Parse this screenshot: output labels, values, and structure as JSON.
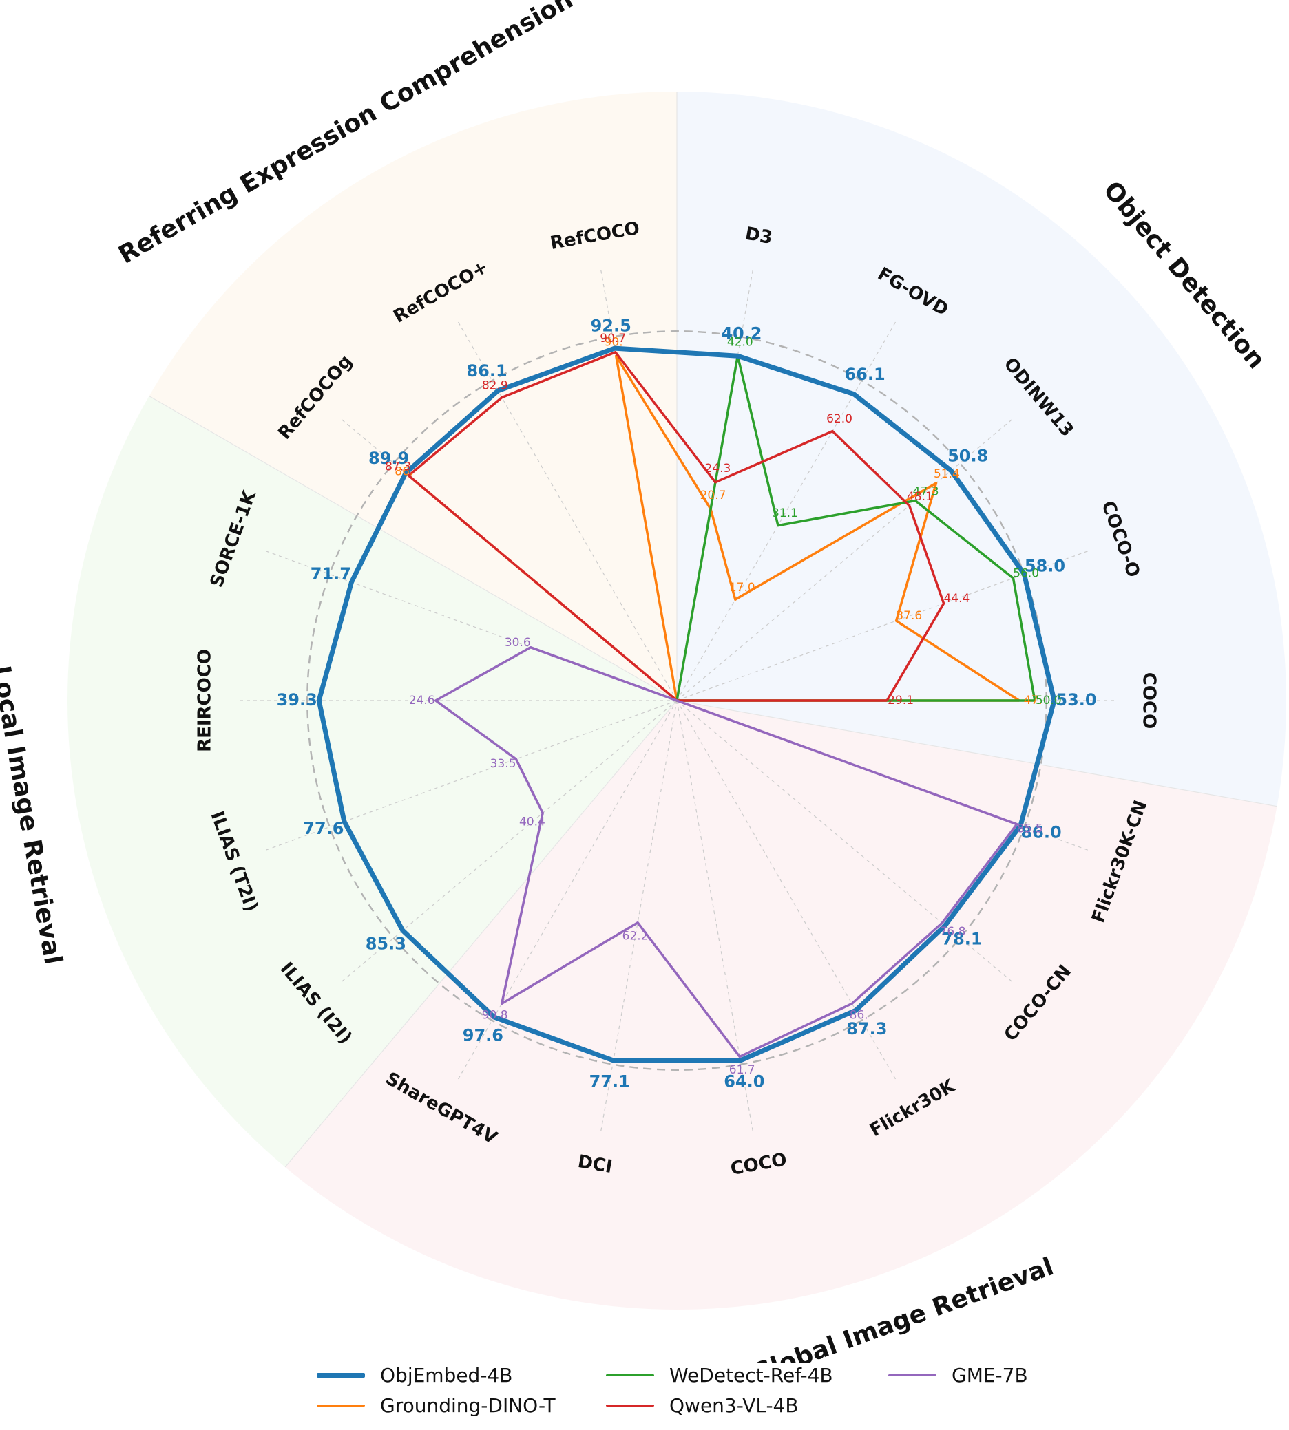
{
  "chart_data": {
    "type": "radar",
    "r_max": 100,
    "reference_ring": 95,
    "grid": true,
    "legend_position": "bottom",
    "groups": [
      {
        "name": "Object Detection",
        "color": "#e8f0fb"
      },
      {
        "name": "Referring Expression Comprehension",
        "color": "#fdf3e6"
      },
      {
        "name": "Local Image Retrieval",
        "color": "#e9f8e6"
      },
      {
        "name": "Global Image Retrieval",
        "color": "#fce8ea"
      }
    ],
    "axes": [
      {
        "label": "COCO",
        "group": 0
      },
      {
        "label": "COCO-O",
        "group": 0
      },
      {
        "label": "ODINW13",
        "group": 0
      },
      {
        "label": "FG-OVD",
        "group": 0
      },
      {
        "label": "D3",
        "group": 0
      },
      {
        "label": "RefCOCO",
        "group": 1
      },
      {
        "label": "RefCOCO+",
        "group": 1
      },
      {
        "label": "RefCOCOg",
        "group": 1
      },
      {
        "label": "SORCE-1K",
        "group": 2
      },
      {
        "label": "REIRCOCO",
        "group": 2
      },
      {
        "label": "ILIAS (T2I)",
        "group": 2
      },
      {
        "label": "ILIAS (I2I)",
        "group": 2
      },
      {
        "label": "ShareGPT4V",
        "group": 3
      },
      {
        "label": "DCI",
        "group": 3
      },
      {
        "label": "COCO",
        "group": 3
      },
      {
        "label": "Flickr30K",
        "group": 3
      },
      {
        "label": "COCO-CN",
        "group": 3
      },
      {
        "label": "Flickr30K-CN",
        "group": 3
      }
    ],
    "series": [
      {
        "name": "ObjEmbed-4B",
        "color": "#1f77b4",
        "stroke_width": 7,
        "primary": true,
        "r": [
          97,
          95,
          92,
          91,
          90,
          92,
          92,
          91,
          89,
          92,
          91,
          92,
          94,
          94,
          94,
          92,
          90,
          94
        ],
        "values": [
          "53.0",
          "58.0",
          "50.8",
          "66.1",
          "40.2",
          "92.5",
          "86.1",
          "89.9",
          "71.7",
          "39.3",
          "77.6",
          "85.3",
          "97.6",
          "77.1",
          "64.0",
          "87.3",
          "78.1",
          "86.0"
        ]
      },
      {
        "name": "Grounding-DINO-T",
        "color": "#ff7f0e",
        "stroke_width": 3.5,
        "r": [
          88,
          60,
          87,
          30,
          50,
          90,
          0,
          88,
          0,
          0,
          0,
          0,
          0,
          0,
          0,
          0,
          0,
          0
        ],
        "values": [
          "47.",
          "37.6",
          "51.4",
          "17.0",
          "20.7",
          "90.",
          "",
          "86.",
          "",
          "",
          "",
          "",
          "",
          "",
          "",
          "",
          "",
          ""
        ],
        "labels": [
          true,
          true,
          true,
          true,
          true,
          true,
          false,
          true,
          false,
          false,
          false,
          false,
          false,
          false,
          false,
          false,
          false,
          false
        ]
      },
      {
        "name": "WeDetect-Ref-4B",
        "color": "#2ca02c",
        "stroke_width": 3.5,
        "r": [
          92,
          92,
          80,
          52,
          90,
          0,
          0,
          0,
          0,
          0,
          0,
          0,
          0,
          0,
          0,
          0,
          0,
          0
        ],
        "values": [
          "50.0",
          "56.0",
          "47.3",
          "31.1",
          "42.0",
          "",
          "",
          "",
          "",
          "",
          "",
          "",
          "",
          "",
          "",
          "",
          "",
          ""
        ],
        "labels": [
          true,
          true,
          true,
          true,
          true,
          false,
          false,
          false,
          false,
          false,
          false,
          false,
          false,
          false,
          false,
          false,
          false,
          false
        ]
      },
      {
        "name": "Qwen3-VL-4B",
        "color": "#d62728",
        "stroke_width": 3.5,
        "r": [
          54,
          73,
          78,
          80,
          57,
          91,
          90,
          90,
          0,
          0,
          0,
          0,
          0,
          0,
          0,
          0,
          0,
          0
        ],
        "values": [
          "29.1",
          "44.4",
          "48.1",
          "62.0",
          "24.3",
          "90.7",
          "82.9",
          "87.3",
          "",
          "",
          "",
          "",
          "",
          "",
          "",
          "",
          "",
          ""
        ],
        "labels": [
          true,
          true,
          true,
          true,
          true,
          true,
          true,
          true,
          false,
          false,
          false,
          false,
          false,
          false,
          false,
          false,
          false,
          false
        ]
      },
      {
        "name": "GME-7B",
        "color": "#9467bd",
        "stroke_width": 3.5,
        "r": [
          0,
          0,
          0,
          0,
          0,
          0,
          0,
          0,
          40,
          62,
          44,
          45,
          90,
          58,
          93,
          90,
          89,
          93
        ],
        "values": [
          "",
          "",
          "",
          "",
          "",
          "",
          "",
          "",
          "30.6",
          "24.6",
          "33.5",
          "40.4",
          "90.8",
          "62.2",
          "61.7",
          "86.",
          "76.8",
          "85.5"
        ],
        "labels": [
          false,
          false,
          false,
          false,
          false,
          false,
          false,
          false,
          true,
          true,
          true,
          true,
          true,
          true,
          true,
          true,
          true,
          true
        ]
      }
    ]
  },
  "legend": {
    "entries": [
      "ObjEmbed-4B",
      "Grounding-DINO-T",
      "WeDetect-Ref-4B",
      "Qwen3-VL-4B",
      "GME-7B"
    ]
  }
}
